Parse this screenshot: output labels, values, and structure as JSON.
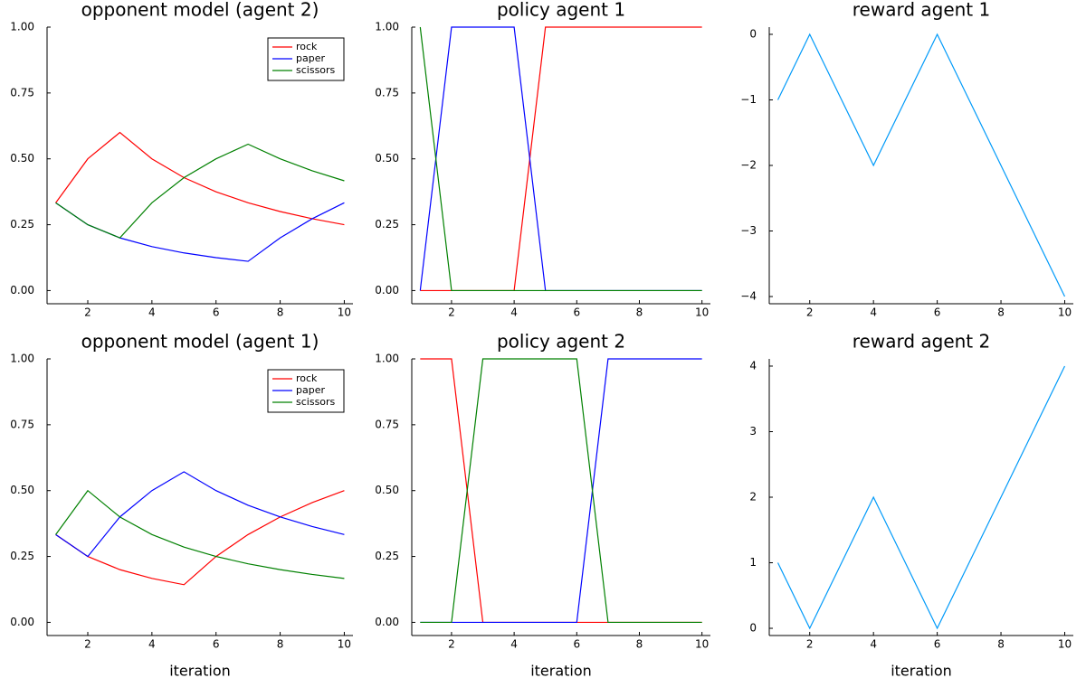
{
  "chart_data": [
    {
      "type": "line",
      "title": "opponent model (agent 2)",
      "x": [
        1,
        2,
        3,
        4,
        5,
        6,
        7,
        8,
        9,
        10
      ],
      "series": [
        {
          "name": "rock",
          "color": "#ff0000",
          "values": [
            0.333,
            0.5,
            0.6,
            0.5,
            0.4286,
            0.375,
            0.3333,
            0.3,
            0.2727,
            0.25
          ]
        },
        {
          "name": "paper",
          "color": "#0000ff",
          "values": [
            0.333,
            0.25,
            0.2,
            0.1667,
            0.1429,
            0.125,
            0.1111,
            0.2,
            0.2727,
            0.3333
          ]
        },
        {
          "name": "scissors",
          "color": "#008000",
          "values": [
            0.333,
            0.25,
            0.2,
            0.3333,
            0.4286,
            0.5,
            0.5556,
            0.5,
            0.4545,
            0.4167
          ]
        }
      ],
      "xlim": [
        0.73,
        10.27
      ],
      "ylim": [
        -0.05,
        1.0
      ],
      "xticks": [
        2,
        4,
        6,
        8,
        10
      ],
      "yticks": [
        {
          "value": 0,
          "label": "0.00"
        },
        {
          "value": 0.25,
          "label": "0.25"
        },
        {
          "value": 0.5,
          "label": "0.50"
        },
        {
          "value": 0.75,
          "label": "0.75"
        },
        {
          "value": 1,
          "label": "1.00"
        }
      ],
      "legend": "top right",
      "grid": false
    },
    {
      "type": "line",
      "title": "policy agent 1",
      "x": [
        1,
        2,
        3,
        4,
        5,
        6,
        7,
        8,
        9,
        10
      ],
      "series": [
        {
          "name": "rock",
          "color": "#ff0000",
          "values": [
            0,
            0,
            0,
            0,
            1,
            1,
            1,
            1,
            1,
            1
          ]
        },
        {
          "name": "paper",
          "color": "#0000ff",
          "values": [
            0,
            1,
            1,
            1,
            0,
            0,
            0,
            0,
            0,
            0
          ]
        },
        {
          "name": "scissors",
          "color": "#008000",
          "values": [
            1,
            0,
            0,
            0,
            0,
            0,
            0,
            0,
            0,
            0
          ]
        }
      ],
      "xlim": [
        0.73,
        10.27
      ],
      "ylim": [
        -0.05,
        1.0
      ],
      "xticks": [
        2,
        4,
        6,
        8,
        10
      ],
      "yticks": [
        {
          "value": 0,
          "label": "0.00"
        },
        {
          "value": 0.25,
          "label": "0.25"
        },
        {
          "value": 0.5,
          "label": "0.50"
        },
        {
          "value": 0.75,
          "label": "0.75"
        },
        {
          "value": 1,
          "label": "1.00"
        }
      ],
      "grid": false
    },
    {
      "type": "line",
      "title": "reward agent 1",
      "x": [
        1,
        2,
        3,
        4,
        5,
        6,
        7,
        8,
        9,
        10
      ],
      "values": [
        -1,
        0,
        -1,
        -2,
        -1,
        0,
        -1,
        -2,
        -3,
        -4
      ],
      "color": "#009af9",
      "xlim": [
        0.73,
        10.27
      ],
      "ylim": [
        -4.11,
        0.11
      ],
      "xticks": [
        2,
        4,
        6,
        8,
        10
      ],
      "yticks": [
        {
          "value": -4,
          "label": "−4"
        },
        {
          "value": -3,
          "label": "−3"
        },
        {
          "value": -2,
          "label": "−2"
        },
        {
          "value": -1,
          "label": "−1"
        },
        0
      ],
      "grid": false
    },
    {
      "type": "line",
      "title": "opponent model (agent 1)",
      "x": [
        1,
        2,
        3,
        4,
        5,
        6,
        7,
        8,
        9,
        10
      ],
      "series": [
        {
          "name": "rock",
          "color": "#ff0000",
          "values": [
            0.333,
            0.25,
            0.2,
            0.1667,
            0.1429,
            0.25,
            0.3333,
            0.4,
            0.4545,
            0.5
          ]
        },
        {
          "name": "paper",
          "color": "#0000ff",
          "values": [
            0.333,
            0.25,
            0.4,
            0.5,
            0.5714,
            0.5,
            0.4444,
            0.4,
            0.3636,
            0.3333
          ]
        },
        {
          "name": "scissors",
          "color": "#008000",
          "values": [
            0.333,
            0.5,
            0.4,
            0.3333,
            0.2857,
            0.25,
            0.2222,
            0.2,
            0.1818,
            0.1667
          ]
        }
      ],
      "xlabel": "iteration",
      "xlim": [
        0.73,
        10.27
      ],
      "ylim": [
        -0.05,
        1.0
      ],
      "xticks": [
        2,
        4,
        6,
        8,
        10
      ],
      "yticks": [
        {
          "value": 0,
          "label": "0.00"
        },
        {
          "value": 0.25,
          "label": "0.25"
        },
        {
          "value": 0.5,
          "label": "0.50"
        },
        {
          "value": 0.75,
          "label": "0.75"
        },
        {
          "value": 1,
          "label": "1.00"
        }
      ],
      "legend": "top right",
      "grid": false
    },
    {
      "type": "line",
      "title": "policy agent 2",
      "x": [
        1,
        2,
        3,
        4,
        5,
        6,
        7,
        8,
        9,
        10
      ],
      "series": [
        {
          "name": "rock",
          "color": "#ff0000",
          "values": [
            1,
            1,
            0,
            0,
            0,
            0,
            0,
            0,
            0,
            0
          ]
        },
        {
          "name": "paper",
          "color": "#0000ff",
          "values": [
            0,
            0,
            0,
            0,
            0,
            0,
            1,
            1,
            1,
            1
          ]
        },
        {
          "name": "scissors",
          "color": "#008000",
          "values": [
            0,
            0,
            1,
            1,
            1,
            1,
            0,
            0,
            0,
            0
          ]
        }
      ],
      "xlabel": "iteration",
      "xlim": [
        0.73,
        10.27
      ],
      "ylim": [
        -0.05,
        1.0
      ],
      "xticks": [
        2,
        4,
        6,
        8,
        10
      ],
      "yticks": [
        {
          "value": 0,
          "label": "0.00"
        },
        {
          "value": 0.25,
          "label": "0.25"
        },
        {
          "value": 0.5,
          "label": "0.50"
        },
        {
          "value": 0.75,
          "label": "0.75"
        },
        {
          "value": 1,
          "label": "1.00"
        }
      ],
      "grid": false
    },
    {
      "type": "line",
      "title": "reward agent 2",
      "x": [
        1,
        2,
        3,
        4,
        5,
        6,
        7,
        8,
        9,
        10
      ],
      "values": [
        1,
        0,
        1,
        2,
        1,
        0,
        1,
        2,
        3,
        4
      ],
      "color": "#009af9",
      "xlabel": "iteration",
      "xlim": [
        0.73,
        10.27
      ],
      "ylim": [
        -0.11,
        4.11
      ],
      "xticks": [
        2,
        4,
        6,
        8,
        10
      ],
      "yticks": [
        0,
        1,
        2,
        3,
        4
      ],
      "grid": false
    }
  ]
}
